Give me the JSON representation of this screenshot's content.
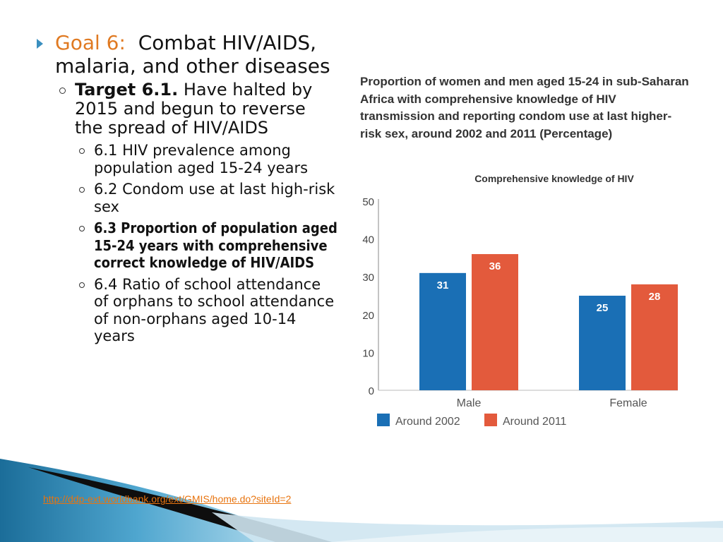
{
  "goal": {
    "label": "Goal 6:",
    "title": "Combat HIV/AIDS, malaria, and other diseases"
  },
  "target": {
    "label": "Target 6.1.",
    "text": "Have halted by 2015 and begun to reverse the spread of HIV/AIDS"
  },
  "indicators": [
    "6.1 HIV prevalence among population aged 15-24 years",
    "6.2 Condom use at last high-risk sex",
    "6.3 Proportion of population aged 15-24 years with comprehensive correct knowledge of HIV/AIDS",
    "6.4 Ratio of school attendance of orphans to school attendance of non-orphans aged 10-14 years"
  ],
  "colors": {
    "accent": "#e07a22",
    "series_2002": "#1a6fb5",
    "series_2011": "#e35a3c",
    "bullet": "#3a8fbf",
    "link": "#e8740f"
  },
  "chart_data": {
    "type": "bar",
    "title": "Proportion of women and men aged 15-24 in sub-Saharan Africa with comprehensive knowledge of HIV transmission and reporting condom use at last higher-risk sex, around 2002 and 2011 (Percentage)",
    "subtitle": "Comprehensive knowledge of HIV",
    "categories": [
      "Male",
      "Female"
    ],
    "series": [
      {
        "name": "Around 2002",
        "values": [
          31,
          25
        ],
        "color": "#1a6fb5"
      },
      {
        "name": "Around 2011",
        "values": [
          36,
          28
        ],
        "color": "#e35a3c"
      }
    ],
    "ylim": [
      0,
      50
    ],
    "yticks": [
      0,
      10,
      20,
      30,
      40,
      50
    ],
    "legend": "bottom-left",
    "grid": false
  },
  "footer": {
    "link_text": "http://ddp-ext.worldbank.org/ext/GMIS/home.do?siteId=2"
  }
}
